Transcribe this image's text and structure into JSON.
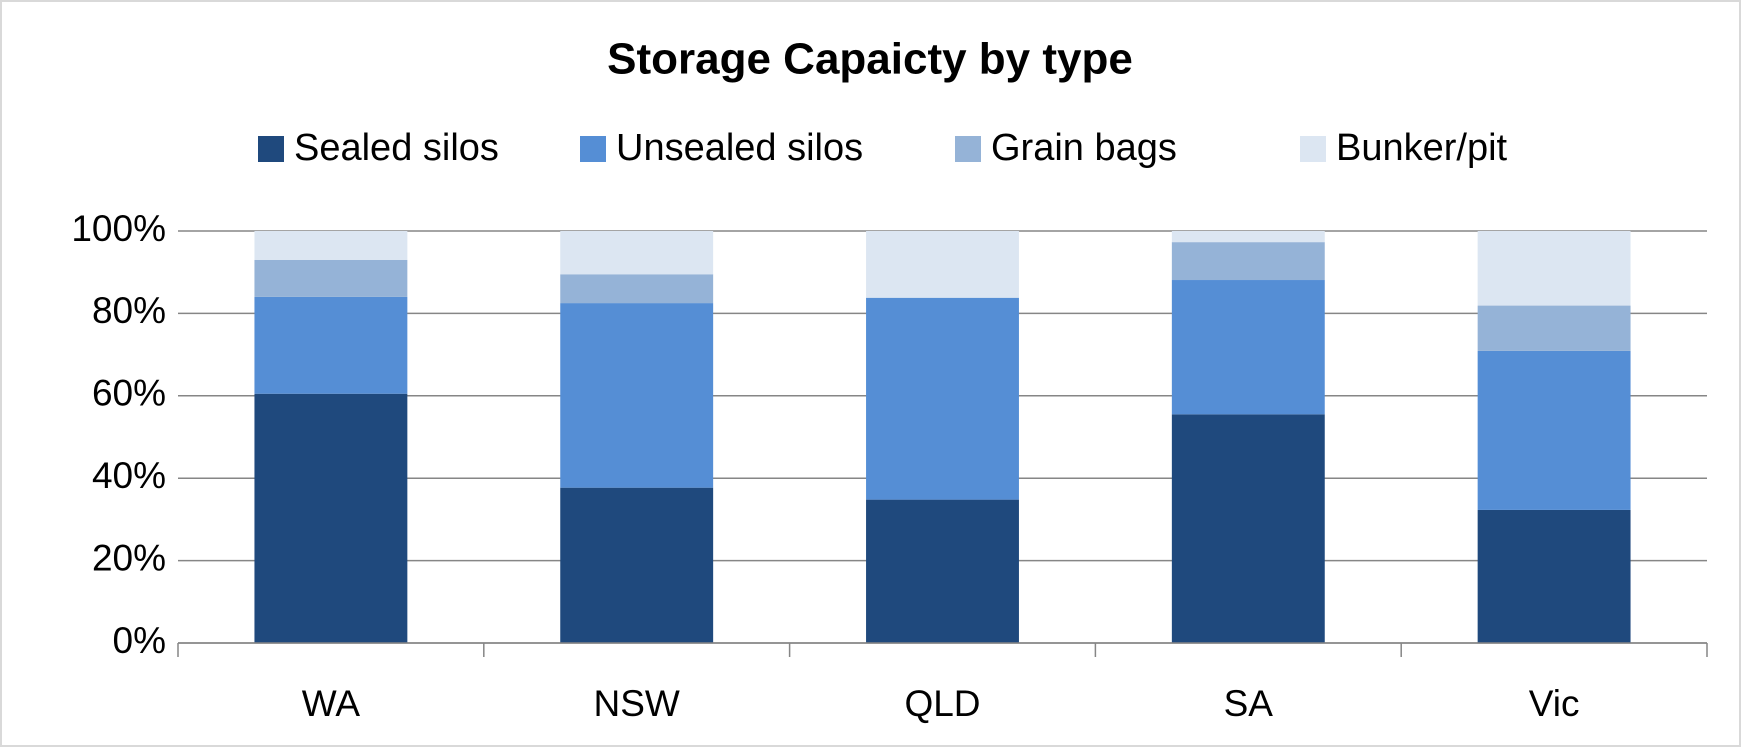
{
  "chart_data": {
    "type": "stacked_bar",
    "title": "Storage Capaicty by type",
    "categories": [
      "WA",
      "NSW",
      "QLD",
      "SA",
      "Vic"
    ],
    "series": [
      {
        "name": "Sealed silos",
        "color": "#1f497d",
        "values": [
          60.5,
          37.7,
          34.8,
          55.5,
          32.3
        ]
      },
      {
        "name": "Unsealed silos",
        "color": "#558ed5",
        "values": [
          23.5,
          44.8,
          49,
          32.6,
          38.6
        ]
      },
      {
        "name": "Grain bags",
        "color": "#95b3d7",
        "values": [
          9,
          7,
          0,
          9.2,
          11
        ]
      },
      {
        "name": "Bunker/pit",
        "color": "#dce6f2",
        "values": [
          7,
          10.5,
          16.2,
          2.7,
          18.1
        ]
      }
    ],
    "ylim": [
      0,
      100
    ],
    "yticks": [
      {
        "value": 0,
        "label": "0%"
      },
      {
        "value": 20,
        "label": "20%"
      },
      {
        "value": 40,
        "label": "40%"
      },
      {
        "value": 60,
        "label": "60%"
      },
      {
        "value": 80,
        "label": "80%"
      },
      {
        "value": 100,
        "label": "100%"
      }
    ],
    "grid": true,
    "legend": "top"
  }
}
